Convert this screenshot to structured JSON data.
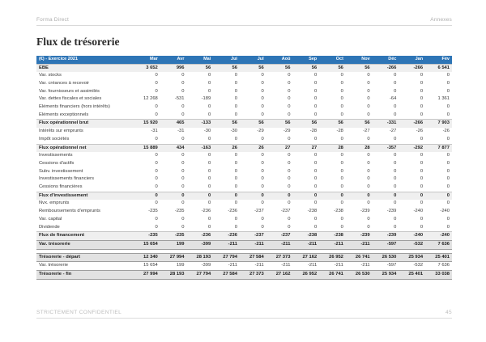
{
  "page": {
    "header": {
      "left": "Forma Direct",
      "right": "Annexes"
    },
    "title": "Flux de trésorerie",
    "footer": {
      "left": "STRICTEMENT CONFIDENTIEL",
      "page_number": "45"
    }
  },
  "colors": {
    "table_header_bg": "#2e75b6",
    "table_header_text": "#ffffff",
    "subtotal_row_bg": "#efefef",
    "summary_row_bg": "#e2e2e2",
    "rule_line": "#d9d9d9"
  },
  "table": {
    "corner_label": "(€) - Exercice 2021",
    "months": [
      "Mar",
      "Avr",
      "Mai",
      "Jui",
      "Jul",
      "Aoû",
      "Sep",
      "Oct",
      "Nov",
      "Déc",
      "Jan",
      "Fév"
    ],
    "rows": [
      {
        "label": "EBE",
        "style": "subtotal",
        "values": [
          "3 652",
          "996",
          "56",
          "56",
          "56",
          "56",
          "56",
          "56",
          "56",
          "-266",
          "-266",
          "6 541"
        ]
      },
      {
        "label": "Var. stocks",
        "style": "plain",
        "values": [
          "0",
          "0",
          "0",
          "0",
          "0",
          "0",
          "0",
          "0",
          "0",
          "0",
          "0",
          "0"
        ]
      },
      {
        "label": "Var. créances à recevoir",
        "style": "plain",
        "values": [
          "0",
          "0",
          "0",
          "0",
          "0",
          "0",
          "0",
          "0",
          "0",
          "0",
          "0",
          "0"
        ]
      },
      {
        "label": "Var. fournisseurs et assimilés",
        "style": "plain",
        "values": [
          "0",
          "0",
          "0",
          "0",
          "0",
          "0",
          "0",
          "0",
          "0",
          "0",
          "0",
          "0"
        ]
      },
      {
        "label": "Var. dettes fiscales et sociales",
        "style": "plain",
        "values": [
          "12 268",
          "-531",
          "-189",
          "0",
          "0",
          "0",
          "0",
          "0",
          "0",
          "-64",
          "0",
          "1 361"
        ]
      },
      {
        "label": "Eléments financiers (hors intérêts)",
        "style": "plain",
        "values": [
          "0",
          "0",
          "0",
          "0",
          "0",
          "0",
          "0",
          "0",
          "0",
          "0",
          "0",
          "0"
        ]
      },
      {
        "label": "Eléments exceptionnels",
        "style": "plain",
        "values": [
          "0",
          "0",
          "0",
          "0",
          "0",
          "0",
          "0",
          "0",
          "0",
          "0",
          "0",
          "0"
        ]
      },
      {
        "label": "Flux opérationnel brut",
        "style": "subtotal",
        "values": [
          "15 920",
          "465",
          "-133",
          "56",
          "56",
          "56",
          "56",
          "56",
          "56",
          "-331",
          "-266",
          "7 903"
        ]
      },
      {
        "label": "Intérêts sur emprunts",
        "style": "plain",
        "values": [
          "-31",
          "-31",
          "-30",
          "-30",
          "-29",
          "-29",
          "-28",
          "-28",
          "-27",
          "-27",
          "-26",
          "-26"
        ]
      },
      {
        "label": "Impôt sociétés",
        "style": "plain",
        "values": [
          "0",
          "0",
          "0",
          "0",
          "0",
          "0",
          "0",
          "0",
          "0",
          "0",
          "0",
          "0"
        ]
      },
      {
        "label": "Flux opérationnel net",
        "style": "subtotal",
        "values": [
          "15 889",
          "434",
          "-163",
          "26",
          "26",
          "27",
          "27",
          "28",
          "28",
          "-357",
          "-292",
          "7 877"
        ]
      },
      {
        "label": "Investissements",
        "style": "plain",
        "values": [
          "0",
          "0",
          "0",
          "0",
          "0",
          "0",
          "0",
          "0",
          "0",
          "0",
          "0",
          "0"
        ]
      },
      {
        "label": "Cessions d'actifs",
        "style": "plain",
        "values": [
          "0",
          "0",
          "0",
          "0",
          "0",
          "0",
          "0",
          "0",
          "0",
          "0",
          "0",
          "0"
        ]
      },
      {
        "label": "Subv. investissement",
        "style": "plain",
        "values": [
          "0",
          "0",
          "0",
          "0",
          "0",
          "0",
          "0",
          "0",
          "0",
          "0",
          "0",
          "0"
        ]
      },
      {
        "label": "Investissements financiers",
        "style": "plain",
        "values": [
          "0",
          "0",
          "0",
          "0",
          "0",
          "0",
          "0",
          "0",
          "0",
          "0",
          "0",
          "0"
        ]
      },
      {
        "label": "Cessions financières",
        "style": "plain",
        "values": [
          "0",
          "0",
          "0",
          "0",
          "0",
          "0",
          "0",
          "0",
          "0",
          "0",
          "0",
          "0"
        ]
      },
      {
        "label": "Flux d'investissement",
        "style": "subtotal",
        "values": [
          "0",
          "0",
          "0",
          "0",
          "0",
          "0",
          "0",
          "0",
          "0",
          "0",
          "0",
          "0"
        ]
      },
      {
        "label": "Nvx. emprunts",
        "style": "plain",
        "values": [
          "0",
          "0",
          "0",
          "0",
          "0",
          "0",
          "0",
          "0",
          "0",
          "0",
          "0",
          "0"
        ]
      },
      {
        "label": "Remboursements d'emprunts",
        "style": "plain",
        "values": [
          "-235",
          "-235",
          "-236",
          "-236",
          "-237",
          "-237",
          "-238",
          "-238",
          "-239",
          "-239",
          "-240",
          "-240"
        ]
      },
      {
        "label": "Var. capital",
        "style": "plain",
        "values": [
          "0",
          "0",
          "0",
          "0",
          "0",
          "0",
          "0",
          "0",
          "0",
          "0",
          "0",
          "0"
        ]
      },
      {
        "label": "Dividende",
        "style": "plain",
        "values": [
          "0",
          "0",
          "0",
          "0",
          "0",
          "0",
          "0",
          "0",
          "0",
          "0",
          "0",
          "0"
        ]
      },
      {
        "label": "Flux de financement",
        "style": "subtotal",
        "values": [
          "-235",
          "-235",
          "-236",
          "-236",
          "-237",
          "-237",
          "-238",
          "-238",
          "-239",
          "-239",
          "-240",
          "-240"
        ]
      },
      {
        "label": "Var. trésorerie",
        "style": "summary",
        "values": [
          "15 654",
          "199",
          "-399",
          "-211",
          "-211",
          "-211",
          "-211",
          "-211",
          "-211",
          "-597",
          "-532",
          "7 636"
        ]
      },
      {
        "label": "Trésorerie - départ",
        "style": "summary",
        "gap_before": true,
        "values": [
          "12 340",
          "27 994",
          "28 193",
          "27 794",
          "27 584",
          "27 373",
          "27 162",
          "26 952",
          "26 741",
          "26 530",
          "25 934",
          "25 401"
        ]
      },
      {
        "label": "Var. trésorerie",
        "style": "plain",
        "values": [
          "15 654",
          "199",
          "-399",
          "-211",
          "-211",
          "-211",
          "-211",
          "-211",
          "-211",
          "-597",
          "-532",
          "7 636"
        ]
      },
      {
        "label": "Trésorerie - fin",
        "style": "summary",
        "values": [
          "27 994",
          "28 193",
          "27 794",
          "27 584",
          "27 373",
          "27 162",
          "26 952",
          "26 741",
          "26 530",
          "25 934",
          "25 401",
          "33 038"
        ]
      }
    ]
  }
}
